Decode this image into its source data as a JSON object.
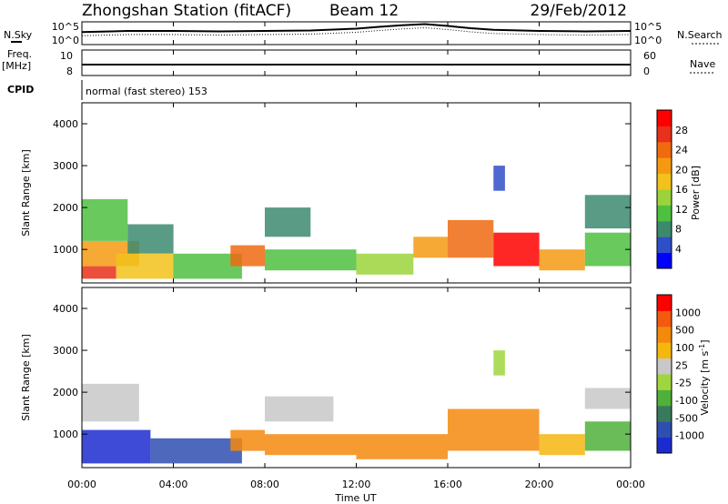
{
  "chart_data": {
    "type": "heatmap",
    "title": "Zhongshan Station (fitACF)",
    "beam": "Beam 12",
    "date": "29/Feb/2012",
    "mode": "normal (fast stereo) 153",
    "x_ticks": [
      "00:00",
      "04:00",
      "08:00",
      "12:00",
      "16:00",
      "20:00",
      "00:00"
    ],
    "xlabel": "Time UT",
    "xlim_hours": [
      0,
      24
    ],
    "status_panels": {
      "noise": {
        "left_label": "N.Sky",
        "right_label": "N.Search",
        "left_ticks": [
          "10^5",
          "10^0"
        ],
        "right_ticks": [
          "10^5",
          "10^0"
        ],
        "series": {
          "t": [
            0,
            2,
            4,
            6,
            8,
            10,
            12,
            13,
            14,
            15,
            16,
            17,
            18,
            20,
            22,
            24
          ],
          "v": [
            0.55,
            0.6,
            0.6,
            0.58,
            0.6,
            0.62,
            0.7,
            0.78,
            0.85,
            0.9,
            0.82,
            0.72,
            0.65,
            0.6,
            0.58,
            0.6
          ]
        }
      },
      "frequency": {
        "left_label": "Freq.",
        "left_unit": "[MHz]",
        "left_ticks": [
          "10",
          "8"
        ],
        "right_label": "Nave",
        "right_ticks": [
          "60",
          "0"
        ]
      },
      "cpid": {
        "left_label": "CPID"
      }
    },
    "panels": [
      {
        "ylabel": "Slant Range [km]",
        "ylim": [
          200,
          4500
        ],
        "y_ticks": [
          1000,
          2000,
          3000,
          4000
        ],
        "colorbar": {
          "label": "Power [dB]",
          "ticks": [
            "4",
            "8",
            "12",
            "16",
            "20",
            "24",
            "28"
          ],
          "colors": [
            "#0000ff",
            "#2f4fc8",
            "#3c8a6e",
            "#4fbf3f",
            "#9bd33b",
            "#f1c21b",
            "#f59a10",
            "#f06a10",
            "#e8301a",
            "#ff0000"
          ]
        },
        "regions": [
          {
            "t": [
              0,
              1.5
            ],
            "r": [
              300,
              600
            ],
            "c": 8
          },
          {
            "t": [
              0,
              2.5
            ],
            "r": [
              600,
              1200
            ],
            "c": 6
          },
          {
            "t": [
              0,
              2
            ],
            "r": [
              1200,
              2200
            ],
            "c": 3
          },
          {
            "t": [
              1.5,
              4
            ],
            "r": [
              300,
              900
            ],
            "c": 5
          },
          {
            "t": [
              2,
              4
            ],
            "r": [
              900,
              1600
            ],
            "c": 2
          },
          {
            "t": [
              4,
              7
            ],
            "r": [
              300,
              900
            ],
            "c": 3
          },
          {
            "t": [
              6.5,
              8
            ],
            "r": [
              600,
              1100
            ],
            "c": 7
          },
          {
            "t": [
              8,
              12
            ],
            "r": [
              500,
              1000
            ],
            "c": 3
          },
          {
            "t": [
              8,
              10
            ],
            "r": [
              1300,
              2000
            ],
            "c": 2
          },
          {
            "t": [
              12,
              14.5
            ],
            "r": [
              400,
              900
            ],
            "c": 4
          },
          {
            "t": [
              14.5,
              16
            ],
            "r": [
              800,
              1300
            ],
            "c": 6
          },
          {
            "t": [
              16,
              18
            ],
            "r": [
              800,
              1700
            ],
            "c": 7
          },
          {
            "t": [
              18,
              20
            ],
            "r": [
              600,
              1400
            ],
            "c": 9
          },
          {
            "t": [
              20,
              22
            ],
            "r": [
              500,
              1000
            ],
            "c": 6
          },
          {
            "t": [
              22,
              24
            ],
            "r": [
              600,
              1400
            ],
            "c": 3
          },
          {
            "t": [
              22,
              24
            ],
            "r": [
              1500,
              2300
            ],
            "c": 2
          },
          {
            "t": [
              18,
              18.5
            ],
            "r": [
              2400,
              3000
            ],
            "c": 1
          }
        ]
      },
      {
        "ylabel": "Slant Range [km]",
        "ylim": [
          200,
          4500
        ],
        "y_ticks": [
          1000,
          2000,
          3000,
          4000
        ],
        "colorbar": {
          "label": "Velocity [m s^-1]",
          "ticks": [
            "1000",
            "500",
            "100",
            "25",
            "-25",
            "-100",
            "-500",
            "-1000"
          ],
          "colors": [
            "#1c2bd0",
            "#2f4fb0",
            "#3a7a5c",
            "#4fb03a",
            "#9fd640",
            "#c8c8c8",
            "#f5b60e",
            "#f38a0d",
            "#f25a10",
            "#ff0000"
          ]
        },
        "regions": [
          {
            "t": [
              0,
              3
            ],
            "r": [
              300,
              1100
            ],
            "c": 0
          },
          {
            "t": [
              0,
              2.5
            ],
            "r": [
              1300,
              2200
            ],
            "c": 5
          },
          {
            "t": [
              3,
              7
            ],
            "r": [
              300,
              900
            ],
            "c": 1
          },
          {
            "t": [
              6.5,
              8
            ],
            "r": [
              600,
              1100
            ],
            "c": 7
          },
          {
            "t": [
              8,
              12
            ],
            "r": [
              500,
              1000
            ],
            "c": 7
          },
          {
            "t": [
              8,
              11
            ],
            "r": [
              1300,
              1900
            ],
            "c": 5
          },
          {
            "t": [
              12,
              16
            ],
            "r": [
              400,
              1000
            ],
            "c": 7
          },
          {
            "t": [
              16,
              20
            ],
            "r": [
              600,
              1600
            ],
            "c": 7
          },
          {
            "t": [
              20,
              22
            ],
            "r": [
              500,
              1000
            ],
            "c": 6
          },
          {
            "t": [
              22,
              24
            ],
            "r": [
              600,
              1300
            ],
            "c": 3
          },
          {
            "t": [
              22,
              24
            ],
            "r": [
              1600,
              2100
            ],
            "c": 5
          },
          {
            "t": [
              18,
              18.5
            ],
            "r": [
              2400,
              3000
            ],
            "c": 4
          }
        ]
      }
    ]
  }
}
